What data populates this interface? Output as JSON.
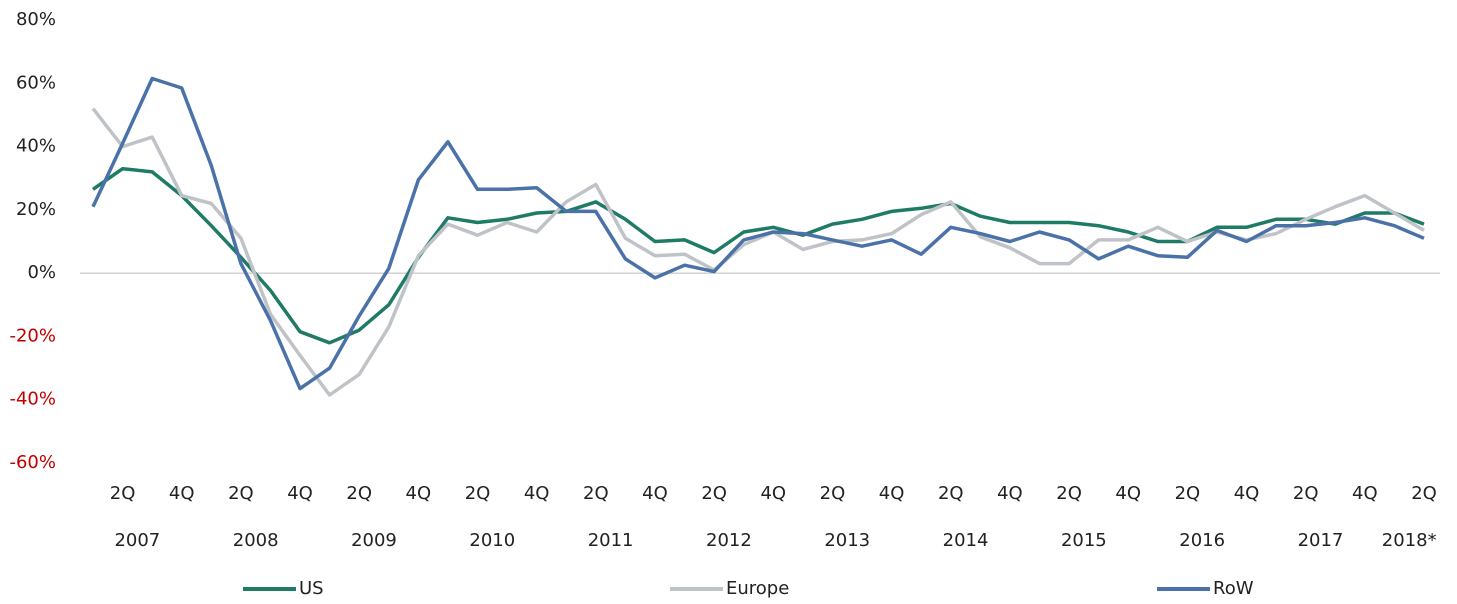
{
  "chart_data": {
    "type": "line",
    "categories": [
      null,
      "2Q",
      null,
      "4Q",
      null,
      "2Q",
      null,
      "4Q",
      null,
      "2Q",
      null,
      "4Q",
      null,
      "2Q",
      null,
      "4Q",
      null,
      "2Q",
      null,
      "4Q",
      null,
      "2Q",
      null,
      "4Q",
      null,
      "2Q",
      null,
      "4Q",
      null,
      "2Q",
      null,
      "4Q",
      null,
      "2Q",
      null,
      "4Q",
      null,
      "2Q",
      null,
      "4Q",
      null,
      "2Q",
      null,
      "4Q",
      null,
      "2Q"
    ],
    "years": [
      "2007",
      "2008",
      "2009",
      "2010",
      "2011",
      "2012",
      "2013",
      "2014",
      "2015",
      "2016",
      "2017",
      "2018*"
    ],
    "series": [
      {
        "name": "US",
        "color": "#1f7a66",
        "values": [
          26.5,
          33,
          32,
          24.5,
          15,
          5,
          -5.5,
          -18.5,
          -22,
          -18,
          -10,
          5,
          17.5,
          16,
          17,
          19,
          19.5,
          22.5,
          17,
          10,
          10.5,
          6.5,
          13,
          14.5,
          12,
          15.5,
          17,
          19.5,
          20.5,
          22,
          18,
          16,
          16,
          16,
          15,
          13,
          10,
          10,
          14.5,
          14.5,
          17,
          17,
          15.5,
          19,
          19,
          15.5
        ]
      },
      {
        "name": "Europe",
        "color": "#bfc3c8",
        "values": [
          52,
          40,
          43,
          24.5,
          22,
          11,
          -13,
          -26,
          -38.5,
          -32,
          -17,
          5.5,
          15.5,
          12,
          16,
          13,
          22.5,
          28,
          11,
          5.5,
          6,
          1,
          9,
          13,
          7.5,
          10,
          10.5,
          12.5,
          18.5,
          22.5,
          11.5,
          8,
          3,
          3,
          10.5,
          10.5,
          14.5,
          10,
          13,
          10.5,
          12.5,
          17,
          21,
          24.5,
          19,
          13.5
        ]
      },
      {
        "name": "RoW",
        "color": "#4a72a8",
        "values": [
          21,
          41,
          61.5,
          58.5,
          34,
          3,
          -15,
          -36.5,
          -30,
          -13.5,
          1.5,
          29.5,
          41.5,
          26.5,
          26.5,
          27,
          19.5,
          19.5,
          4.5,
          -1.5,
          2.5,
          0.5,
          10.5,
          13,
          12.5,
          10.5,
          8.5,
          10.5,
          6,
          14.5,
          12.5,
          10,
          13,
          10.5,
          4.5,
          8.5,
          5.5,
          5,
          13.5,
          10,
          15,
          15,
          16,
          17.5,
          15,
          11
        ]
      }
    ],
    "ylim": [
      -60,
      80
    ],
    "yticks": [
      {
        "value": -60,
        "label": "-60%"
      },
      {
        "value": -40,
        "label": "-40%"
      },
      {
        "value": -20,
        "label": "-20%"
      },
      {
        "value": 0,
        "label": "0%"
      },
      {
        "value": 20,
        "label": "20%"
      },
      {
        "value": 40,
        "label": "40%"
      },
      {
        "value": 60,
        "label": "60%"
      },
      {
        "value": 80,
        "label": "80%"
      }
    ],
    "negative_tick_color": "#c00000",
    "legend": "bottom"
  }
}
